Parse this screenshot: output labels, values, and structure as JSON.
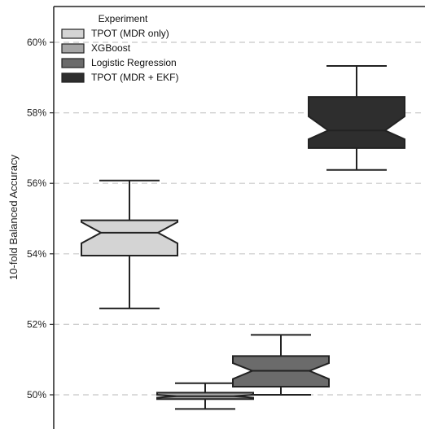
{
  "chart_data": {
    "type": "boxplot",
    "title": "",
    "xlabel": "",
    "ylabel": "10-fold Balanced Accuracy",
    "y_unit": "%",
    "ylim": [
      49.0,
      60.95
    ],
    "yticks": [
      50,
      52,
      54,
      56,
      58,
      60
    ],
    "ytick_labels": [
      "50%",
      "52%",
      "54%",
      "56%",
      "58%",
      "60%"
    ],
    "grid": "horizontal dashed",
    "notched": true,
    "legend": {
      "title": "Experiment",
      "placement": "top-left",
      "entries": [
        "TPOT (MDR only)",
        "XGBoost",
        "Logistic Regression",
        "TPOT (MDR + EKF)"
      ]
    },
    "series": [
      {
        "name": "TPOT (MDR only)",
        "color": "#d4d4d4",
        "whisker_low": 52.45,
        "q1": 53.95,
        "median": 54.6,
        "q3": 54.95,
        "whisker_high": 56.08,
        "notch_low": 54.3,
        "notch_high": 54.9
      },
      {
        "name": "XGBoost",
        "color": "#a6a6a6",
        "whisker_low": 49.6,
        "q1": 49.88,
        "median": 49.96,
        "q3": 50.06,
        "whisker_high": 50.33,
        "notch_low": 49.92,
        "notch_high": 50.0
      },
      {
        "name": "Logistic Regression",
        "color": "#6b6b6b",
        "whisker_low": 50.0,
        "q1": 50.23,
        "median": 50.68,
        "q3": 51.1,
        "whisker_high": 51.7,
        "notch_low": 50.45,
        "notch_high": 50.9
      },
      {
        "name": "TPOT (MDR + EKF)",
        "color": "#2e2e2e",
        "whisker_low": 56.38,
        "q1": 57.0,
        "median": 57.5,
        "q3": 58.45,
        "whisker_high": 59.33,
        "notch_low": 57.25,
        "notch_high": 57.9
      }
    ]
  }
}
